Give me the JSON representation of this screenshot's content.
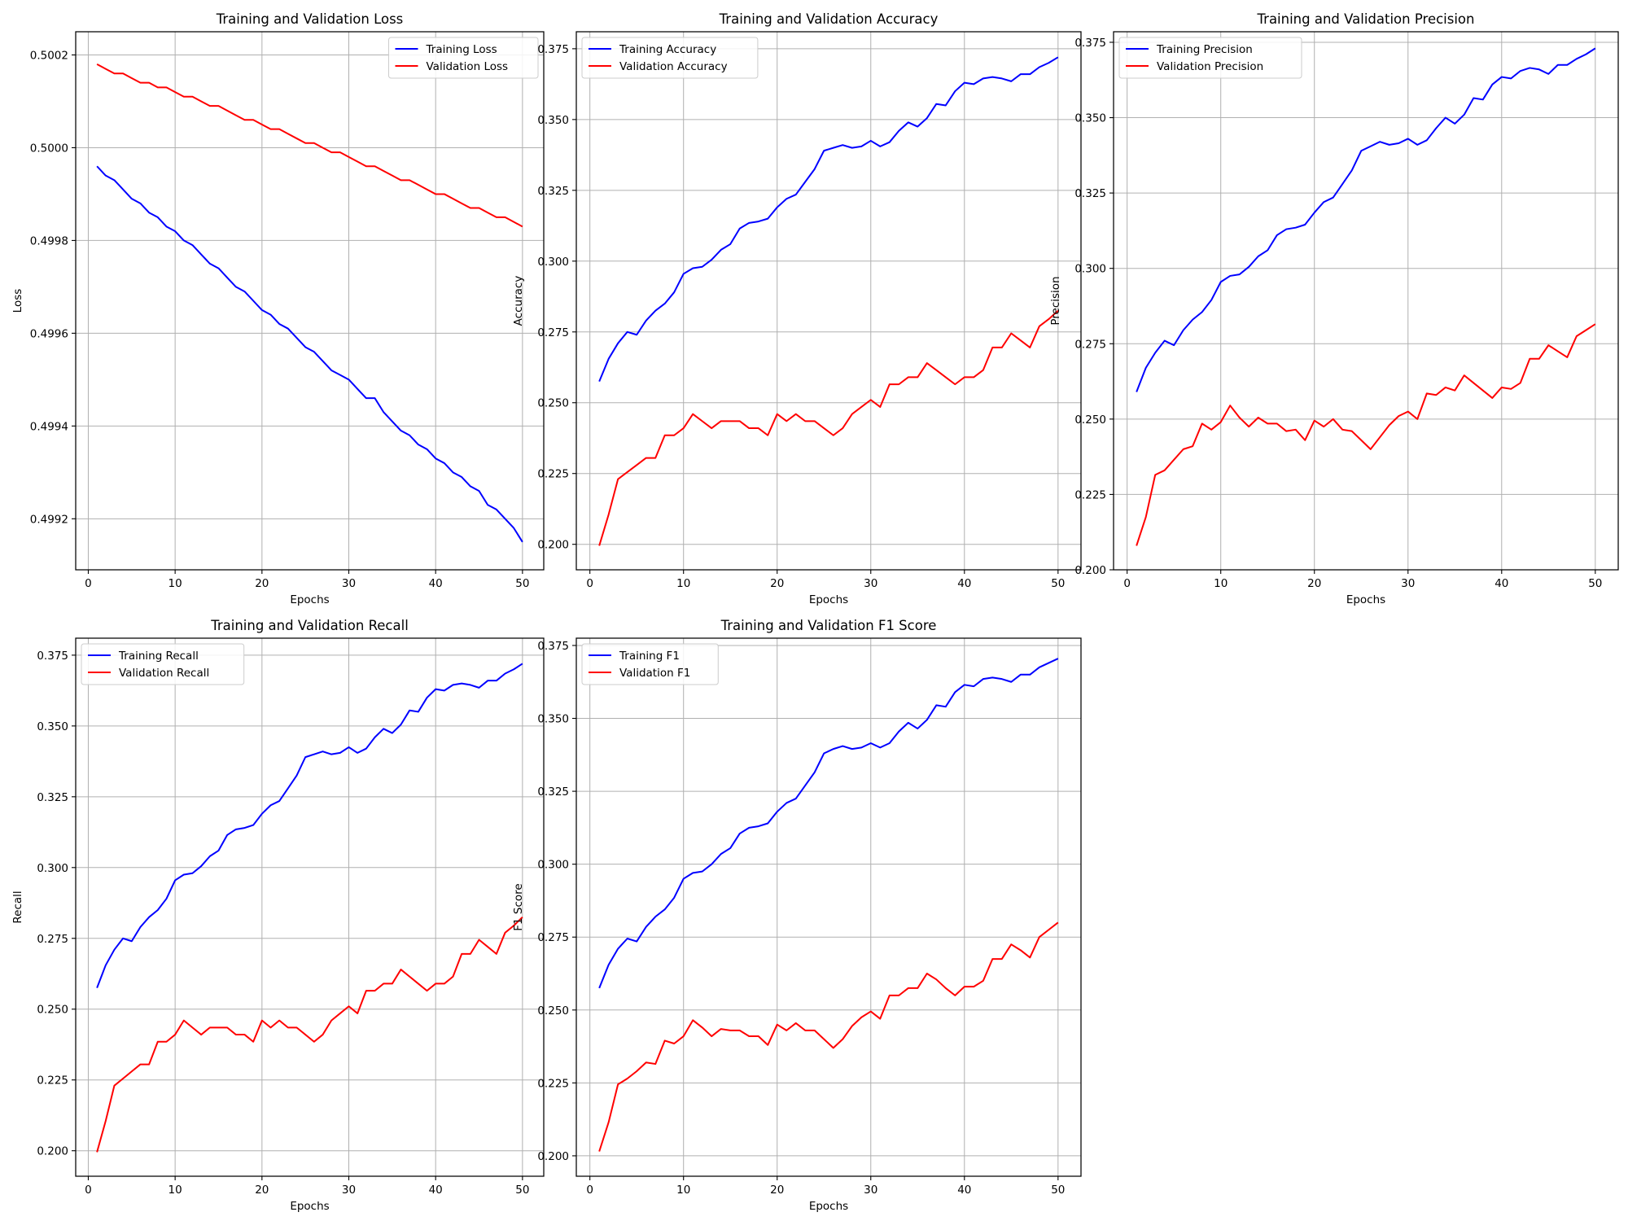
{
  "chart_data": [
    {
      "type": "line",
      "title": "Training and Validation Loss",
      "xlabel": "Epochs",
      "ylabel": "Loss",
      "xlim": [
        -1.45,
        52.45
      ],
      "ylim": [
        0.49909,
        0.50025
      ],
      "xticks": [
        0,
        10,
        20,
        30,
        40,
        50
      ],
      "yticks": [
        0.4992,
        0.4994,
        0.4996,
        0.4998,
        0.5,
        0.5002
      ],
      "ytick_labels": [
        "0.4992",
        "0.4994",
        "0.4996",
        "0.4998",
        "0.5000",
        "0.5002"
      ],
      "grid": true,
      "legend_position": "top-right",
      "x": [
        1,
        2,
        3,
        4,
        5,
        6,
        7,
        8,
        9,
        10,
        11,
        12,
        13,
        14,
        15,
        16,
        17,
        18,
        19,
        20,
        21,
        22,
        23,
        24,
        25,
        26,
        27,
        28,
        29,
        30,
        31,
        32,
        33,
        34,
        35,
        36,
        37,
        38,
        39,
        40,
        41,
        42,
        43,
        44,
        45,
        46,
        47,
        48,
        49,
        50
      ],
      "series": [
        {
          "name": "Training Loss",
          "color": "#0000ff",
          "values": [
            0.49996,
            0.49994,
            0.49993,
            0.49991,
            0.49989,
            0.49988,
            0.49986,
            0.49985,
            0.49983,
            0.49982,
            0.4998,
            0.49979,
            0.49977,
            0.49975,
            0.49974,
            0.49972,
            0.4997,
            0.49969,
            0.49967,
            0.49965,
            0.49964,
            0.49962,
            0.49961,
            0.49959,
            0.49957,
            0.49956,
            0.49954,
            0.49952,
            0.49951,
            0.4995,
            0.49948,
            0.49946,
            0.49946,
            0.49943,
            0.49941,
            0.49939,
            0.49938,
            0.49936,
            0.49935,
            0.49933,
            0.49932,
            0.4993,
            0.49929,
            0.49927,
            0.49926,
            0.49923,
            0.49922,
            0.4992,
            0.49918,
            0.49915
          ]
        },
        {
          "name": "Validation Loss",
          "color": "#ff0000",
          "values": [
            0.50018,
            0.50017,
            0.50016,
            0.50016,
            0.50015,
            0.50014,
            0.50014,
            0.50013,
            0.50013,
            0.50012,
            0.50011,
            0.50011,
            0.5001,
            0.50009,
            0.50009,
            0.50008,
            0.50007,
            0.50006,
            0.50006,
            0.50005,
            0.50004,
            0.50004,
            0.50003,
            0.50002,
            0.50001,
            0.50001,
            0.5,
            0.49999,
            0.49999,
            0.49998,
            0.49997,
            0.49996,
            0.49996,
            0.49995,
            0.49994,
            0.49993,
            0.49993,
            0.49992,
            0.49991,
            0.4999,
            0.4999,
            0.49989,
            0.49988,
            0.49987,
            0.49987,
            0.49986,
            0.49985,
            0.49985,
            0.49984,
            0.49983
          ]
        }
      ]
    },
    {
      "type": "line",
      "title": "Training and Validation Accuracy",
      "xlabel": "Epochs",
      "ylabel": "Accuracy",
      "xlim": [
        -1.45,
        52.45
      ],
      "ylim": [
        0.191,
        0.381
      ],
      "xticks": [
        0,
        10,
        20,
        30,
        40,
        50
      ],
      "yticks": [
        0.2,
        0.225,
        0.25,
        0.275,
        0.3,
        0.325,
        0.35,
        0.375
      ],
      "ytick_labels": [
        "0.200",
        "0.225",
        "0.250",
        "0.275",
        "0.300",
        "0.325",
        "0.350",
        "0.375"
      ],
      "grid": true,
      "legend_position": "top-left",
      "x": [
        1,
        2,
        3,
        4,
        5,
        6,
        7,
        8,
        9,
        10,
        11,
        12,
        13,
        14,
        15,
        16,
        17,
        18,
        19,
        20,
        21,
        22,
        23,
        24,
        25,
        26,
        27,
        28,
        29,
        30,
        31,
        32,
        33,
        34,
        35,
        36,
        37,
        38,
        39,
        40,
        41,
        42,
        43,
        44,
        45,
        46,
        47,
        48,
        49,
        50
      ],
      "series": [
        {
          "name": "Training Accuracy",
          "color": "#0000ff",
          "values": [
            0.2575,
            0.2655,
            0.271,
            0.275,
            0.274,
            0.279,
            0.2825,
            0.285,
            0.289,
            0.2955,
            0.2975,
            0.298,
            0.3005,
            0.304,
            0.306,
            0.3115,
            0.3135,
            0.314,
            0.315,
            0.319,
            0.322,
            0.3235,
            0.328,
            0.3325,
            0.339,
            0.34,
            0.341,
            0.34,
            0.3405,
            0.3425,
            0.3405,
            0.342,
            0.346,
            0.349,
            0.3475,
            0.3505,
            0.3555,
            0.355,
            0.36,
            0.363,
            0.3625,
            0.3645,
            0.365,
            0.3645,
            0.3635,
            0.366,
            0.366,
            0.3685,
            0.37,
            0.372
          ]
        },
        {
          "name": "Validation Accuracy",
          "color": "#ff0000",
          "values": [
            0.1995,
            0.2105,
            0.223,
            0.2255,
            0.228,
            0.2305,
            0.2305,
            0.2385,
            0.2385,
            0.241,
            0.246,
            0.2435,
            0.241,
            0.2435,
            0.2435,
            0.2435,
            0.241,
            0.241,
            0.2385,
            0.246,
            0.2435,
            0.246,
            0.2435,
            0.2435,
            0.241,
            0.2385,
            0.241,
            0.246,
            0.2485,
            0.251,
            0.2485,
            0.2565,
            0.2565,
            0.259,
            0.259,
            0.264,
            0.2615,
            0.259,
            0.2565,
            0.259,
            0.259,
            0.2615,
            0.2695,
            0.2695,
            0.2745,
            0.272,
            0.2695,
            0.277,
            0.2795,
            0.2825
          ]
        }
      ]
    },
    {
      "type": "line",
      "title": "Training and Validation Precision",
      "xlabel": "Epochs",
      "ylabel": "Precision",
      "xlim": [
        -1.45,
        52.45
      ],
      "ylim": [
        0.2,
        0.3785
      ],
      "xticks": [
        0,
        10,
        20,
        30,
        40,
        50
      ],
      "yticks": [
        0.2,
        0.225,
        0.25,
        0.275,
        0.3,
        0.325,
        0.35,
        0.375
      ],
      "ytick_labels": [
        "0.200",
        "0.225",
        "0.250",
        "0.275",
        "0.300",
        "0.325",
        "0.350",
        "0.375"
      ],
      "grid": true,
      "legend_position": "top-left",
      "x": [
        1,
        2,
        3,
        4,
        5,
        6,
        7,
        8,
        9,
        10,
        11,
        12,
        13,
        14,
        15,
        16,
        17,
        18,
        19,
        20,
        21,
        22,
        23,
        24,
        25,
        26,
        27,
        28,
        29,
        30,
        31,
        32,
        33,
        34,
        35,
        36,
        37,
        38,
        39,
        40,
        41,
        42,
        43,
        44,
        45,
        46,
        47,
        48,
        49,
        50
      ],
      "series": [
        {
          "name": "Training Precision",
          "color": "#0000ff",
          "values": [
            0.259,
            0.267,
            0.272,
            0.276,
            0.2745,
            0.2795,
            0.283,
            0.2855,
            0.2895,
            0.2955,
            0.2975,
            0.298,
            0.3005,
            0.304,
            0.306,
            0.311,
            0.313,
            0.3135,
            0.3145,
            0.3185,
            0.322,
            0.3235,
            0.328,
            0.3325,
            0.339,
            0.3405,
            0.342,
            0.341,
            0.3415,
            0.343,
            0.341,
            0.3425,
            0.3465,
            0.35,
            0.348,
            0.351,
            0.3565,
            0.356,
            0.361,
            0.3635,
            0.363,
            0.3655,
            0.3665,
            0.366,
            0.3645,
            0.3675,
            0.3675,
            0.3695,
            0.371,
            0.373
          ]
        },
        {
          "name": "Validation Precision",
          "color": "#ff0000",
          "values": [
            0.208,
            0.2175,
            0.2315,
            0.233,
            0.2365,
            0.24,
            0.241,
            0.2485,
            0.2465,
            0.249,
            0.2545,
            0.2505,
            0.2475,
            0.2505,
            0.2485,
            0.2485,
            0.246,
            0.2465,
            0.243,
            0.2495,
            0.2475,
            0.25,
            0.2465,
            0.246,
            0.243,
            0.24,
            0.244,
            0.248,
            0.251,
            0.2525,
            0.25,
            0.2585,
            0.258,
            0.2605,
            0.2595,
            0.2645,
            0.262,
            0.2595,
            0.257,
            0.2605,
            0.26,
            0.262,
            0.27,
            0.27,
            0.2745,
            0.2725,
            0.2705,
            0.2775,
            0.2795,
            0.2815
          ]
        }
      ]
    },
    {
      "type": "line",
      "title": "Training and Validation Recall",
      "xlabel": "Epochs",
      "ylabel": "Recall",
      "xlim": [
        -1.45,
        52.45
      ],
      "ylim": [
        0.191,
        0.381
      ],
      "xticks": [
        0,
        10,
        20,
        30,
        40,
        50
      ],
      "yticks": [
        0.2,
        0.225,
        0.25,
        0.275,
        0.3,
        0.325,
        0.35,
        0.375
      ],
      "ytick_labels": [
        "0.200",
        "0.225",
        "0.250",
        "0.275",
        "0.300",
        "0.325",
        "0.350",
        "0.375"
      ],
      "grid": true,
      "legend_position": "top-left",
      "x": [
        1,
        2,
        3,
        4,
        5,
        6,
        7,
        8,
        9,
        10,
        11,
        12,
        13,
        14,
        15,
        16,
        17,
        18,
        19,
        20,
        21,
        22,
        23,
        24,
        25,
        26,
        27,
        28,
        29,
        30,
        31,
        32,
        33,
        34,
        35,
        36,
        37,
        38,
        39,
        40,
        41,
        42,
        43,
        44,
        45,
        46,
        47,
        48,
        49,
        50
      ],
      "series": [
        {
          "name": "Training Recall",
          "color": "#0000ff",
          "values": [
            0.2575,
            0.2655,
            0.271,
            0.275,
            0.274,
            0.279,
            0.2825,
            0.285,
            0.289,
            0.2955,
            0.2975,
            0.298,
            0.3005,
            0.304,
            0.306,
            0.3115,
            0.3135,
            0.314,
            0.315,
            0.319,
            0.322,
            0.3235,
            0.328,
            0.3325,
            0.339,
            0.34,
            0.341,
            0.34,
            0.3405,
            0.3425,
            0.3405,
            0.342,
            0.346,
            0.349,
            0.3475,
            0.3505,
            0.3555,
            0.355,
            0.36,
            0.363,
            0.3625,
            0.3645,
            0.365,
            0.3645,
            0.3635,
            0.366,
            0.366,
            0.3685,
            0.37,
            0.372
          ]
        },
        {
          "name": "Validation Recall",
          "color": "#ff0000",
          "values": [
            0.1995,
            0.2105,
            0.223,
            0.2255,
            0.228,
            0.2305,
            0.2305,
            0.2385,
            0.2385,
            0.241,
            0.246,
            0.2435,
            0.241,
            0.2435,
            0.2435,
            0.2435,
            0.241,
            0.241,
            0.2385,
            0.246,
            0.2435,
            0.246,
            0.2435,
            0.2435,
            0.241,
            0.2385,
            0.241,
            0.246,
            0.2485,
            0.251,
            0.2485,
            0.2565,
            0.2565,
            0.259,
            0.259,
            0.264,
            0.2615,
            0.259,
            0.2565,
            0.259,
            0.259,
            0.2615,
            0.2695,
            0.2695,
            0.2745,
            0.272,
            0.2695,
            0.277,
            0.2795,
            0.2825
          ]
        }
      ]
    },
    {
      "type": "line",
      "title": "Training and Validation F1 Score",
      "xlabel": "Epochs",
      "ylabel": "F1 Score",
      "xlim": [
        -1.45,
        52.45
      ],
      "ylim": [
        0.193,
        0.3775
      ],
      "xticks": [
        0,
        10,
        20,
        30,
        40,
        50
      ],
      "yticks": [
        0.2,
        0.225,
        0.25,
        0.275,
        0.3,
        0.325,
        0.35,
        0.375
      ],
      "ytick_labels": [
        "0.200",
        "0.225",
        "0.250",
        "0.275",
        "0.300",
        "0.325",
        "0.350",
        "0.375"
      ],
      "grid": true,
      "legend_position": "top-left",
      "x": [
        1,
        2,
        3,
        4,
        5,
        6,
        7,
        8,
        9,
        10,
        11,
        12,
        13,
        14,
        15,
        16,
        17,
        18,
        19,
        20,
        21,
        22,
        23,
        24,
        25,
        26,
        27,
        28,
        29,
        30,
        31,
        32,
        33,
        34,
        35,
        36,
        37,
        38,
        39,
        40,
        41,
        42,
        43,
        44,
        45,
        46,
        47,
        48,
        49,
        50
      ],
      "series": [
        {
          "name": "Training F1",
          "color": "#0000ff",
          "values": [
            0.2575,
            0.2655,
            0.271,
            0.2745,
            0.2735,
            0.2785,
            0.282,
            0.2845,
            0.2885,
            0.295,
            0.297,
            0.2975,
            0.3,
            0.3035,
            0.3055,
            0.3105,
            0.3125,
            0.313,
            0.314,
            0.318,
            0.321,
            0.3225,
            0.327,
            0.3315,
            0.338,
            0.3395,
            0.3405,
            0.3395,
            0.34,
            0.3415,
            0.34,
            0.3415,
            0.3455,
            0.3485,
            0.3465,
            0.3495,
            0.3545,
            0.354,
            0.359,
            0.3615,
            0.361,
            0.3635,
            0.364,
            0.3635,
            0.3625,
            0.365,
            0.365,
            0.3675,
            0.369,
            0.3705
          ]
        },
        {
          "name": "Validation F1",
          "color": "#ff0000",
          "values": [
            0.2015,
            0.2115,
            0.2245,
            0.2265,
            0.229,
            0.232,
            0.2315,
            0.2395,
            0.2385,
            0.241,
            0.2465,
            0.244,
            0.241,
            0.2435,
            0.243,
            0.243,
            0.241,
            0.241,
            0.238,
            0.245,
            0.243,
            0.2455,
            0.243,
            0.243,
            0.24,
            0.237,
            0.24,
            0.2445,
            0.2475,
            0.2495,
            0.247,
            0.255,
            0.255,
            0.2575,
            0.2575,
            0.2625,
            0.2605,
            0.2575,
            0.255,
            0.258,
            0.258,
            0.26,
            0.2675,
            0.2675,
            0.2725,
            0.2705,
            0.268,
            0.275,
            0.2775,
            0.28
          ]
        }
      ]
    }
  ]
}
